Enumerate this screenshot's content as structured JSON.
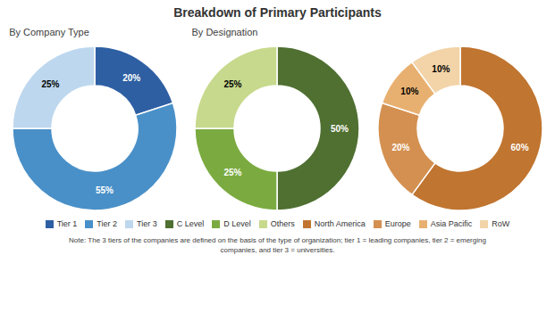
{
  "title": "Breakdown of Primary Participants",
  "chart_data": [
    {
      "type": "pie",
      "subtitle": "By Company Type",
      "categories": [
        "Tier 1",
        "Tier 2",
        "Tier 3"
      ],
      "values": [
        20,
        55,
        25
      ],
      "value_labels": [
        "20%",
        "55%",
        "25%"
      ],
      "colors": [
        "#2E5FA3",
        "#4A90C8",
        "#BDD7EE"
      ],
      "data_labels": true,
      "legend": "bottom"
    },
    {
      "type": "pie",
      "subtitle": "By Designation",
      "categories": [
        "C Level",
        "D Level",
        "Others"
      ],
      "values": [
        50,
        25,
        25
      ],
      "value_labels": [
        "50%",
        "25%",
        "25%"
      ],
      "colors": [
        "#4F7031",
        "#7BAB40",
        "#C7D98C"
      ],
      "data_labels": true,
      "legend": "bottom"
    },
    {
      "type": "pie",
      "categories": [
        "North America",
        "Europe",
        "Asia Pacific",
        "RoW"
      ],
      "values": [
        60,
        20,
        10,
        10
      ],
      "value_labels": [
        "60%",
        "20%",
        "10%",
        "10%"
      ],
      "colors": [
        "#C07530",
        "#D49050",
        "#E8B070",
        "#F2D4A8"
      ],
      "data_labels": true,
      "legend": "bottom"
    }
  ],
  "annotations": [
    "Note: The 3 tiers of the companies are defined on the basis of the type of organization; tier 1 = leading companies, tier 2 = emerging",
    "companies, and tier 3 = universities."
  ]
}
